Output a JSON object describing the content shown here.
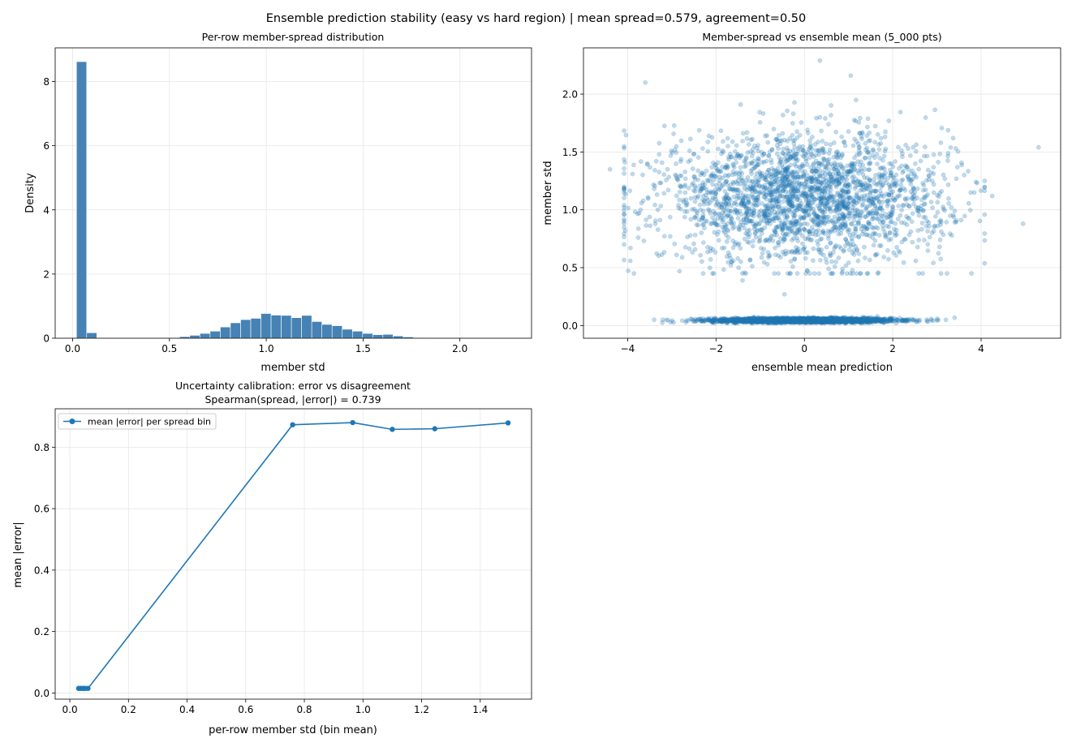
{
  "figure": {
    "suptitle": "Ensemble prediction stability (easy vs hard region)  |  mean spread=0.579, agreement=0.50"
  },
  "colors": {
    "hist_bar": "#4682b4",
    "series": "#1f77b4",
    "grid": "#e6e6e6"
  },
  "chart_data": [
    {
      "type": "bar",
      "title": "Per-row member-spread distribution",
      "xlabel": "member std",
      "ylabel": "Density",
      "xlim": [
        -0.09,
        2.37
      ],
      "ylim": [
        0,
        9.05
      ],
      "xticks": [
        "0.0",
        "0.5",
        "1.0",
        "1.5",
        "2.0"
      ],
      "xtick_values": [
        0.0,
        0.5,
        1.0,
        1.5,
        2.0
      ],
      "yticks": [
        "0",
        "2",
        "4",
        "6",
        "8"
      ],
      "ytick_values": [
        0,
        2,
        4,
        6,
        8
      ],
      "grid": true,
      "bin_width": 0.0525,
      "bins": [
        {
          "x0": 0.02,
          "density": 8.62
        },
        {
          "x0": 0.0725,
          "density": 0.17
        },
        {
          "x0": 0.5,
          "density": 0.02
        },
        {
          "x0": 0.5525,
          "density": 0.05
        },
        {
          "x0": 0.605,
          "density": 0.09
        },
        {
          "x0": 0.6575,
          "density": 0.15
        },
        {
          "x0": 0.71,
          "density": 0.22
        },
        {
          "x0": 0.7625,
          "density": 0.35
        },
        {
          "x0": 0.815,
          "density": 0.48
        },
        {
          "x0": 0.8675,
          "density": 0.58
        },
        {
          "x0": 0.92,
          "density": 0.62
        },
        {
          "x0": 0.9725,
          "density": 0.77
        },
        {
          "x0": 1.025,
          "density": 0.72
        },
        {
          "x0": 1.0775,
          "density": 0.71
        },
        {
          "x0": 1.13,
          "density": 0.64
        },
        {
          "x0": 1.1825,
          "density": 0.71
        },
        {
          "x0": 1.235,
          "density": 0.52
        },
        {
          "x0": 1.2875,
          "density": 0.43
        },
        {
          "x0": 1.34,
          "density": 0.39
        },
        {
          "x0": 1.3925,
          "density": 0.28
        },
        {
          "x0": 1.445,
          "density": 0.22
        },
        {
          "x0": 1.4975,
          "density": 0.15
        },
        {
          "x0": 1.55,
          "density": 0.11
        },
        {
          "x0": 1.6025,
          "density": 0.12
        },
        {
          "x0": 1.655,
          "density": 0.07
        },
        {
          "x0": 1.7075,
          "density": 0.04
        },
        {
          "x0": 1.76,
          "density": 0.02
        },
        {
          "x0": 1.8125,
          "density": 0.01
        }
      ]
    },
    {
      "type": "scatter",
      "title": "Member-spread vs ensemble mean (5_000 pts)",
      "xlabel": "ensemble mean prediction",
      "ylabel": "member std",
      "xlim": [
        -5.0,
        5.8
      ],
      "ylim": [
        -0.11,
        2.4
      ],
      "xticks": [
        "−4",
        "−2",
        "0",
        "2",
        "4"
      ],
      "xtick_values": [
        -4,
        -2,
        0,
        2,
        4
      ],
      "yticks": [
        "0.0",
        "0.5",
        "1.0",
        "1.5",
        "2.0"
      ],
      "ytick_values": [
        0.0,
        0.5,
        1.0,
        1.5,
        2.0
      ],
      "grid": true,
      "n_points": 5000,
      "clusters": [
        {
          "name": "easy",
          "x_mean": 0.0,
          "x_sd": 1.0,
          "y_mean": 0.045,
          "y_sd": 0.01,
          "count": 2500
        },
        {
          "name": "hard",
          "x_mean": 0.0,
          "x_sd": 1.35,
          "y_mean": 1.1,
          "y_sd": 0.27,
          "count": 2500
        }
      ],
      "notable_points": [
        {
          "x": -3.6,
          "y": 2.1
        },
        {
          "x": 0.35,
          "y": 2.29
        },
        {
          "x": 1.05,
          "y": 2.16
        },
        {
          "x": 5.3,
          "y": 1.54
        },
        {
          "x": 4.95,
          "y": 0.88
        },
        {
          "x": -4.4,
          "y": 1.35
        },
        {
          "x": -0.45,
          "y": 0.27
        },
        {
          "x": -1.4,
          "y": 0.39
        },
        {
          "x": 4.25,
          "y": 1.12
        }
      ]
    },
    {
      "type": "line",
      "title": "Uncertainty calibration: error vs disagreement",
      "subtitle": "Spearman(spread, |error|) = 0.739",
      "xlabel": "per-row member std (bin mean)",
      "ylabel": "mean |error|",
      "xlim": [
        -0.05,
        1.575
      ],
      "ylim": [
        -0.02,
        0.925
      ],
      "xticks": [
        "0.0",
        "0.2",
        "0.4",
        "0.6",
        "0.8",
        "1.0",
        "1.2",
        "1.4"
      ],
      "xtick_values": [
        0.0,
        0.2,
        0.4,
        0.6,
        0.8,
        1.0,
        1.2,
        1.4
      ],
      "yticks": [
        "0.0",
        "0.2",
        "0.4",
        "0.6",
        "0.8"
      ],
      "ytick_values": [
        0.0,
        0.2,
        0.4,
        0.6,
        0.8
      ],
      "grid": true,
      "legend_position": "top-left",
      "series": [
        {
          "name": "mean |error| per spread bin",
          "x": [
            0.03,
            0.038,
            0.045,
            0.052,
            0.062,
            0.76,
            0.965,
            1.1,
            1.245,
            1.495
          ],
          "y": [
            0.015,
            0.015,
            0.015,
            0.015,
            0.015,
            0.873,
            0.88,
            0.858,
            0.86,
            0.879
          ]
        }
      ]
    }
  ]
}
